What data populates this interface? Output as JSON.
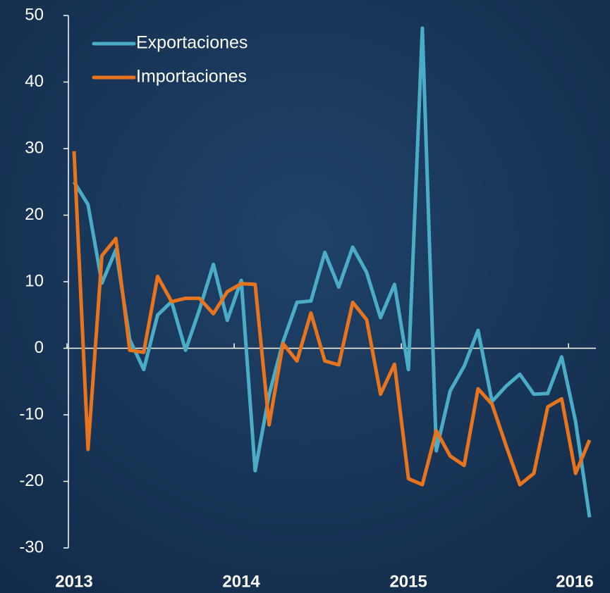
{
  "chart_data": {
    "type": "line",
    "categories": [
      "2013",
      null,
      null,
      null,
      null,
      null,
      null,
      null,
      null,
      null,
      null,
      null,
      "2014",
      null,
      null,
      null,
      null,
      null,
      null,
      null,
      null,
      null,
      null,
      null,
      "2015",
      null,
      null,
      null,
      null,
      null,
      null,
      null,
      null,
      null,
      null,
      null,
      "2016",
      null
    ],
    "series": [
      {
        "name": "Exportaciones",
        "color": "#4bacc6",
        "values": [
          25,
          21.6,
          9.8,
          14.8,
          1.3,
          -3.2,
          5,
          7,
          -0.3,
          5.8,
          12.6,
          4.2,
          10.2,
          -18.4,
          -7,
          1,
          6.9,
          7.1,
          14.4,
          9.2,
          15.2,
          11.4,
          4.6,
          9.6,
          -3.2,
          48.1,
          -15.4,
          -6.4,
          -2.7,
          2.7,
          -8,
          -5.7,
          -3.9,
          -6.9,
          -6.8,
          -1.3,
          -11,
          -25.4
        ]
      },
      {
        "name": "Importaciones",
        "color": "#e8741e",
        "values": [
          29.6,
          -15.2,
          13.9,
          16.5,
          -0.3,
          -0.6,
          10.8,
          7,
          7.5,
          7.5,
          5.2,
          8.5,
          9.7,
          9.6,
          -11.5,
          0.7,
          -1.9,
          5.3,
          -1.9,
          -2.5,
          6.9,
          4.3,
          -6.9,
          -2.4,
          -19.6,
          -20.5,
          -12.4,
          -16.2,
          -17.6,
          -6.1,
          -8.4,
          -14.6,
          -20.5,
          -18.8,
          -8.8,
          -7.6,
          -18.8,
          -13.8
        ]
      }
    ],
    "ylim": [
      -30,
      50
    ],
    "yticks": [
      -30,
      -20,
      -10,
      0,
      10,
      20,
      30,
      40,
      50
    ],
    "legend": "top-left"
  }
}
